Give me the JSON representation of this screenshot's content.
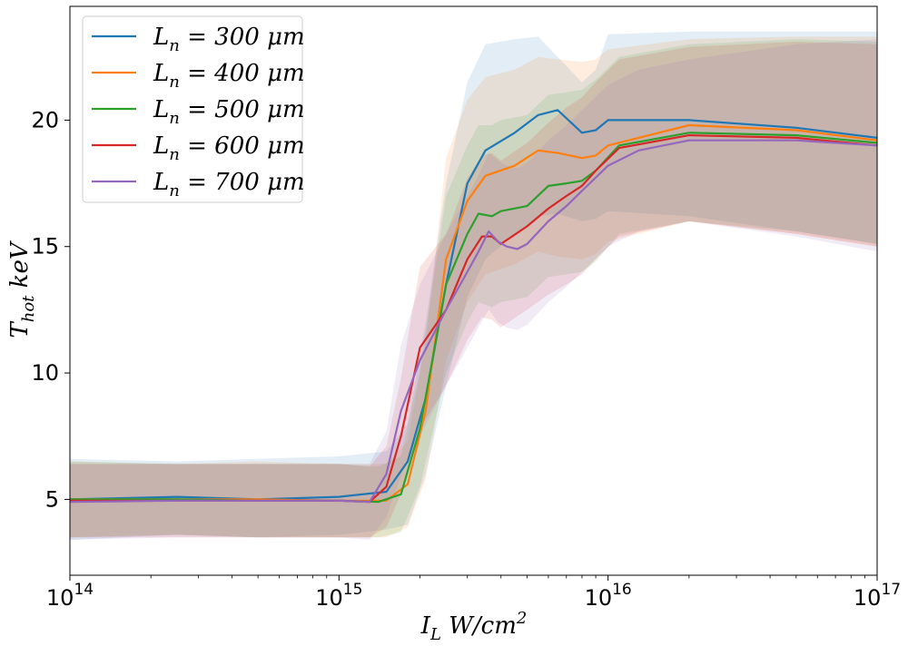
{
  "chart_data": {
    "type": "line",
    "xscale": "log",
    "xlim": [
      100000000000000.0,
      1e+17
    ],
    "ylim": [
      2,
      24.5
    ],
    "xlabel": "I_L W/cm^2",
    "ylabel": "T_hot keV",
    "legend_location": "top-left",
    "grid": false,
    "x_ticks": [
      {
        "value": 100000000000000.0,
        "base": "10",
        "exp": "14"
      },
      {
        "value": 1000000000000000.0,
        "base": "10",
        "exp": "15"
      },
      {
        "value": 1e+16,
        "base": "10",
        "exp": "16"
      },
      {
        "value": 1e+17,
        "base": "10",
        "exp": "17"
      }
    ],
    "y_ticks": [
      {
        "value": 5,
        "label": "5"
      },
      {
        "value": 10,
        "label": "10"
      },
      {
        "value": 15,
        "label": "15"
      },
      {
        "value": 20,
        "label": "20"
      }
    ],
    "series": [
      {
        "name": "L_n = 300 μm",
        "color": "#1f77b4",
        "x": [
          100000000000000.0,
          250000000000000.0,
          500000000000000.0,
          1000000000000000.0,
          1500000000000000.0,
          1800000000000000.0,
          2100000000000000.0,
          2500000000000000.0,
          3000000000000000.0,
          3500000000000000.0,
          4500000000000000.0,
          5500000000000000.0,
          6500000000000000.0,
          8000000000000000.0,
          9000000000000000.0,
          1e+16,
          2e+16,
          5e+16,
          1e+17
        ],
        "y": [
          5.0,
          5.1,
          5.0,
          5.1,
          5.3,
          6.5,
          9.0,
          13.5,
          17.5,
          18.8,
          19.5,
          20.2,
          20.4,
          19.5,
          19.6,
          20.0,
          20.0,
          19.7,
          19.3
        ],
        "lower": [
          3.4,
          3.6,
          3.5,
          3.6,
          3.8,
          4.0,
          6.0,
          9.5,
          13.0,
          14.5,
          15.5,
          16.2,
          16.3,
          16.0,
          16.1,
          16.4,
          16.2,
          15.6,
          15.1
        ],
        "upper": [
          6.6,
          6.5,
          6.6,
          6.7,
          6.9,
          8.0,
          12.0,
          17.5,
          21.5,
          23.0,
          23.2,
          23.3,
          22.5,
          21.5,
          22.0,
          23.4,
          23.5,
          23.5,
          23.5
        ]
      },
      {
        "name": "L_n = 400 μm",
        "color": "#ff7f0e",
        "x": [
          100000000000000.0,
          250000000000000.0,
          500000000000000.0,
          1000000000000000.0,
          1500000000000000.0,
          1800000000000000.0,
          2100000000000000.0,
          2500000000000000.0,
          3000000000000000.0,
          3500000000000000.0,
          4500000000000000.0,
          5500000000000000.0,
          6500000000000000.0,
          8000000000000000.0,
          9000000000000000.0,
          1e+16,
          2e+16,
          5e+16,
          1e+17
        ],
        "y": [
          5.0,
          5.0,
          5.0,
          4.95,
          4.95,
          5.6,
          8.5,
          14.5,
          16.8,
          17.8,
          18.2,
          18.8,
          18.7,
          18.5,
          18.6,
          19.0,
          19.8,
          19.6,
          19.2
        ],
        "lower": [
          3.5,
          3.6,
          3.5,
          3.5,
          3.5,
          3.9,
          5.8,
          10.5,
          12.8,
          13.9,
          14.3,
          14.8,
          14.6,
          14.5,
          14.7,
          15.2,
          16.0,
          15.5,
          15.0
        ],
        "upper": [
          6.5,
          6.4,
          6.5,
          6.4,
          6.4,
          7.3,
          11.2,
          18.5,
          20.8,
          21.7,
          22.0,
          22.5,
          22.4,
          22.3,
          22.4,
          22.8,
          23.2,
          23.3,
          23.3
        ]
      },
      {
        "name": "L_n = 500 μm",
        "color": "#2ca02c",
        "x": [
          100000000000000.0,
          250000000000000.0,
          500000000000000.0,
          1000000000000000.0,
          1400000000000000.0,
          1700000000000000.0,
          2000000000000000.0,
          2500000000000000.0,
          3000000000000000.0,
          3300000000000000.0,
          3700000000000000.0,
          4000000000000000.0,
          5000000000000000.0,
          6000000000000000.0,
          7000000000000000.0,
          8000000000000000.0,
          9000000000000000.0,
          1.1e+16,
          2e+16,
          5e+16,
          1e+17
        ],
        "y": [
          5.0,
          5.0,
          4.95,
          4.95,
          4.9,
          5.2,
          7.8,
          13.5,
          15.5,
          16.3,
          16.2,
          16.4,
          16.6,
          17.4,
          17.5,
          17.6,
          18.0,
          19.0,
          19.5,
          19.4,
          19.1
        ],
        "lower": [
          3.5,
          3.6,
          3.5,
          3.5,
          3.5,
          3.7,
          5.5,
          10.0,
          12.0,
          12.8,
          12.6,
          12.8,
          13.0,
          13.8,
          13.9,
          14.0,
          14.4,
          15.5,
          16.0,
          15.6,
          15.1
        ],
        "upper": [
          6.5,
          6.4,
          6.4,
          6.4,
          6.3,
          6.7,
          10.1,
          17.0,
          19.0,
          19.8,
          19.8,
          20.0,
          20.2,
          21.0,
          21.1,
          21.2,
          21.6,
          22.5,
          23.0,
          23.2,
          23.1
        ]
      },
      {
        "name": "L_n = 600 μm",
        "color": "#d62728",
        "x": [
          100000000000000.0,
          250000000000000.0,
          500000000000000.0,
          1000000000000000.0,
          1300000000000000.0,
          1500000000000000.0,
          1700000000000000.0,
          2000000000000000.0,
          2500000000000000.0,
          3000000000000000.0,
          3400000000000000.0,
          3700000000000000.0,
          4000000000000000.0,
          5000000000000000.0,
          6000000000000000.0,
          7000000000000000.0,
          8000000000000000.0,
          9000000000000000.0,
          1.1e+16,
          2e+16,
          5e+16,
          1e+17
        ],
        "y": [
          4.95,
          4.95,
          4.95,
          4.95,
          4.9,
          5.5,
          7.5,
          11.0,
          12.5,
          14.5,
          15.4,
          15.4,
          15.1,
          15.8,
          16.5,
          17.0,
          17.4,
          18.0,
          18.9,
          19.4,
          19.3,
          19.0
        ],
        "lower": [
          3.5,
          3.5,
          3.5,
          3.5,
          3.5,
          3.9,
          5.2,
          7.8,
          9.5,
          11.3,
          12.2,
          12.1,
          11.8,
          12.5,
          13.1,
          13.5,
          13.9,
          14.5,
          15.4,
          16.0,
          15.5,
          15.0
        ],
        "upper": [
          6.4,
          6.4,
          6.4,
          6.4,
          6.3,
          7.1,
          9.8,
          14.2,
          15.5,
          17.7,
          18.6,
          18.7,
          18.4,
          19.1,
          19.9,
          20.5,
          20.9,
          21.5,
          22.4,
          22.9,
          23.1,
          23.0
        ]
      },
      {
        "name": "L_n = 700 μm",
        "color": "#9467bd",
        "x": [
          100000000000000.0,
          250000000000000.0,
          500000000000000.0,
          1000000000000000.0,
          1300000000000000.0,
          1500000000000000.0,
          1700000000000000.0,
          2000000000000000.0,
          2500000000000000.0,
          3000000000000000.0,
          3300000000000000.0,
          3600000000000000.0,
          3900000000000000.0,
          4200000000000000.0,
          4600000000000000.0,
          5000000000000000.0,
          6000000000000000.0,
          7000000000000000.0,
          8000000000000000.0,
          1e+16,
          1.3e+16,
          2e+16,
          5e+16,
          1e+17
        ],
        "y": [
          4.9,
          4.95,
          4.95,
          4.95,
          4.9,
          6.0,
          8.5,
          10.5,
          12.5,
          14.0,
          14.8,
          15.6,
          15.2,
          15.0,
          14.9,
          15.1,
          16.0,
          16.6,
          17.2,
          18.2,
          18.8,
          19.2,
          19.2,
          19.0
        ],
        "lower": [
          3.4,
          3.5,
          3.5,
          3.5,
          3.4,
          4.3,
          5.9,
          7.5,
          9.5,
          11.0,
          11.8,
          12.5,
          12.0,
          11.8,
          11.7,
          11.9,
          12.8,
          13.4,
          14.0,
          15.0,
          15.6,
          16.0,
          15.4,
          14.8
        ],
        "upper": [
          6.4,
          6.4,
          6.4,
          6.4,
          6.4,
          7.7,
          11.1,
          13.5,
          15.5,
          17.0,
          17.8,
          18.7,
          18.4,
          18.2,
          18.1,
          18.3,
          19.2,
          19.8,
          20.4,
          21.4,
          22.0,
          22.4,
          23.0,
          23.2
        ]
      }
    ]
  },
  "legend": {
    "items": [
      {
        "var": "L",
        "sub": "n",
        "rest": " = 300 ",
        "unit": "μm",
        "color": "#1f77b4"
      },
      {
        "var": "L",
        "sub": "n",
        "rest": " = 400 ",
        "unit": "μm",
        "color": "#ff7f0e"
      },
      {
        "var": "L",
        "sub": "n",
        "rest": " = 500 ",
        "unit": "μm",
        "color": "#2ca02c"
      },
      {
        "var": "L",
        "sub": "n",
        "rest": " = 600 ",
        "unit": "μm",
        "color": "#d62728"
      },
      {
        "var": "L",
        "sub": "n",
        "rest": " = 700 ",
        "unit": "μm",
        "color": "#9467bd"
      }
    ]
  },
  "axes": {
    "x_label": {
      "var": "I",
      "sub": "L",
      "rest": " W/cm",
      "sup": "2"
    },
    "y_label": {
      "var": "T",
      "sub": "hot",
      "rest": " keV"
    }
  }
}
